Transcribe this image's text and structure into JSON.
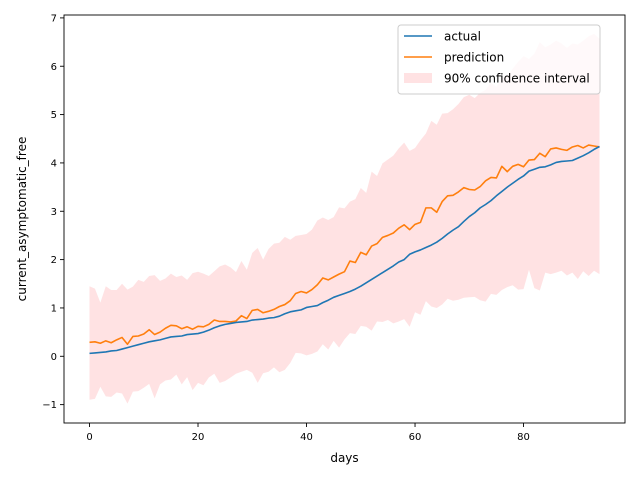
{
  "chart_data": {
    "type": "line",
    "title": "",
    "xlabel": "days",
    "ylabel": "current_asymptomatic_free",
    "xlim": [
      -4.7,
      98.7
    ],
    "ylim": [
      -1.38,
      7.06
    ],
    "xticks": [
      0,
      20,
      40,
      60,
      80
    ],
    "yticks": [
      -1,
      0,
      1,
      2,
      3,
      4,
      5,
      6,
      7
    ],
    "ytick_labels": [
      "−1",
      "0",
      "1",
      "2",
      "3",
      "4",
      "5",
      "6",
      "7"
    ],
    "grid": false,
    "legend_position": "top-right",
    "x": [
      0,
      1,
      2,
      3,
      4,
      5,
      6,
      7,
      8,
      9,
      10,
      11,
      12,
      13,
      14,
      15,
      16,
      17,
      18,
      19,
      20,
      21,
      22,
      23,
      24,
      25,
      26,
      27,
      28,
      29,
      30,
      31,
      32,
      33,
      34,
      35,
      36,
      37,
      38,
      39,
      40,
      41,
      42,
      43,
      44,
      45,
      46,
      47,
      48,
      49,
      50,
      51,
      52,
      53,
      54,
      55,
      56,
      57,
      58,
      59,
      60,
      61,
      62,
      63,
      64,
      65,
      66,
      67,
      68,
      69,
      70,
      71,
      72,
      73,
      74,
      75,
      76,
      77,
      78,
      79,
      80,
      81,
      82,
      83,
      84,
      85,
      86,
      87,
      88,
      89,
      90,
      91,
      92,
      93,
      94
    ],
    "series": [
      {
        "name": "actual",
        "color": "#1f77b4",
        "values": [
          0.06,
          0.07,
          0.08,
          0.09,
          0.11,
          0.12,
          0.15,
          0.18,
          0.21,
          0.24,
          0.27,
          0.3,
          0.32,
          0.34,
          0.37,
          0.4,
          0.41,
          0.42,
          0.45,
          0.46,
          0.47,
          0.5,
          0.54,
          0.59,
          0.63,
          0.66,
          0.68,
          0.7,
          0.71,
          0.72,
          0.75,
          0.76,
          0.77,
          0.79,
          0.8,
          0.83,
          0.88,
          0.92,
          0.94,
          0.96,
          1.01,
          1.03,
          1.05,
          1.11,
          1.16,
          1.22,
          1.26,
          1.3,
          1.34,
          1.39,
          1.45,
          1.52,
          1.59,
          1.66,
          1.73,
          1.8,
          1.87,
          1.95,
          2.0,
          2.11,
          2.16,
          2.2,
          2.25,
          2.3,
          2.36,
          2.44,
          2.53,
          2.61,
          2.68,
          2.79,
          2.89,
          2.97,
          3.07,
          3.14,
          3.22,
          3.32,
          3.41,
          3.5,
          3.58,
          3.66,
          3.73,
          3.83,
          3.87,
          3.91,
          3.92,
          3.96,
          4.01,
          4.03,
          4.04,
          4.05,
          4.1,
          4.15,
          4.21,
          4.28,
          4.34
        ]
      },
      {
        "name": "prediction",
        "color": "#ff7f0e",
        "values": [
          0.29,
          0.3,
          0.27,
          0.32,
          0.28,
          0.34,
          0.39,
          0.25,
          0.41,
          0.42,
          0.46,
          0.55,
          0.45,
          0.5,
          0.58,
          0.64,
          0.63,
          0.57,
          0.61,
          0.56,
          0.62,
          0.61,
          0.66,
          0.75,
          0.72,
          0.72,
          0.71,
          0.73,
          0.84,
          0.78,
          0.95,
          0.97,
          0.9,
          0.93,
          0.97,
          1.03,
          1.07,
          1.15,
          1.3,
          1.34,
          1.31,
          1.38,
          1.48,
          1.62,
          1.58,
          1.64,
          1.7,
          1.75,
          1.97,
          1.94,
          2.15,
          2.1,
          2.28,
          2.33,
          2.46,
          2.5,
          2.55,
          2.65,
          2.72,
          2.62,
          2.73,
          2.77,
          3.07,
          3.07,
          2.98,
          3.2,
          3.32,
          3.33,
          3.4,
          3.49,
          3.45,
          3.44,
          3.51,
          3.63,
          3.7,
          3.69,
          3.93,
          3.82,
          3.93,
          3.97,
          3.92,
          4.06,
          4.07,
          4.2,
          4.13,
          4.29,
          4.31,
          4.28,
          4.26,
          4.33,
          4.36,
          4.31,
          4.37,
          4.35,
          4.33
        ]
      }
    ],
    "band": {
      "name": "90% confidence interval",
      "color": "#ffb6b9",
      "upper": [
        1.45,
        1.4,
        1.11,
        1.45,
        1.37,
        1.37,
        1.5,
        1.38,
        1.44,
        1.58,
        1.54,
        1.66,
        1.68,
        1.56,
        1.61,
        1.71,
        1.64,
        1.67,
        1.58,
        1.72,
        1.75,
        1.71,
        1.66,
        1.76,
        1.86,
        1.9,
        1.84,
        1.74,
        1.97,
        1.79,
        2.14,
        2.24,
        2.0,
        2.22,
        2.33,
        2.35,
        2.47,
        2.41,
        2.49,
        2.51,
        2.53,
        2.62,
        2.81,
        2.87,
        2.82,
        2.88,
        3.08,
        3.06,
        3.2,
        3.25,
        3.48,
        3.38,
        3.82,
        3.73,
        3.99,
        4.07,
        4.15,
        4.3,
        4.42,
        4.25,
        4.31,
        4.47,
        4.61,
        4.87,
        4.79,
        5.02,
        5.03,
        5.11,
        5.22,
        5.36,
        5.41,
        5.34,
        5.45,
        5.51,
        5.66,
        5.57,
        5.76,
        5.8,
        5.95,
        6.09,
        6.21,
        6.15,
        6.26,
        6.5,
        6.39,
        6.45,
        6.53,
        6.47,
        6.38,
        6.47,
        6.45,
        6.53,
        6.62,
        6.67,
        6.57
      ],
      "lower": [
        -0.9,
        -0.88,
        -0.63,
        -0.83,
        -0.84,
        -0.75,
        -0.77,
        -0.98,
        -0.73,
        -0.72,
        -0.65,
        -0.57,
        -0.87,
        -0.58,
        -0.5,
        -0.48,
        -0.38,
        -0.58,
        -0.43,
        -0.7,
        -0.55,
        -0.6,
        -0.44,
        -0.36,
        -0.55,
        -0.51,
        -0.44,
        -0.36,
        -0.32,
        -0.28,
        -0.34,
        -0.55,
        -0.35,
        -0.32,
        -0.23,
        -0.33,
        -0.28,
        -0.14,
        0.07,
        0.06,
        0.02,
        0.05,
        0.1,
        0.25,
        0.14,
        0.32,
        0.18,
        0.35,
        0.48,
        0.46,
        0.63,
        0.61,
        0.53,
        0.72,
        0.71,
        0.75,
        0.68,
        0.72,
        0.77,
        0.61,
        0.91,
        0.86,
        1.14,
        1.03,
        1.0,
        1.07,
        1.19,
        1.15,
        1.17,
        1.21,
        1.22,
        1.23,
        1.16,
        1.13,
        1.29,
        1.27,
        1.37,
        1.43,
        1.47,
        1.38,
        1.39,
        1.79,
        1.41,
        1.36,
        1.73,
        1.7,
        1.73,
        1.77,
        1.67,
        1.73,
        1.6,
        1.76,
        1.66,
        1.77,
        1.7
      ]
    }
  }
}
